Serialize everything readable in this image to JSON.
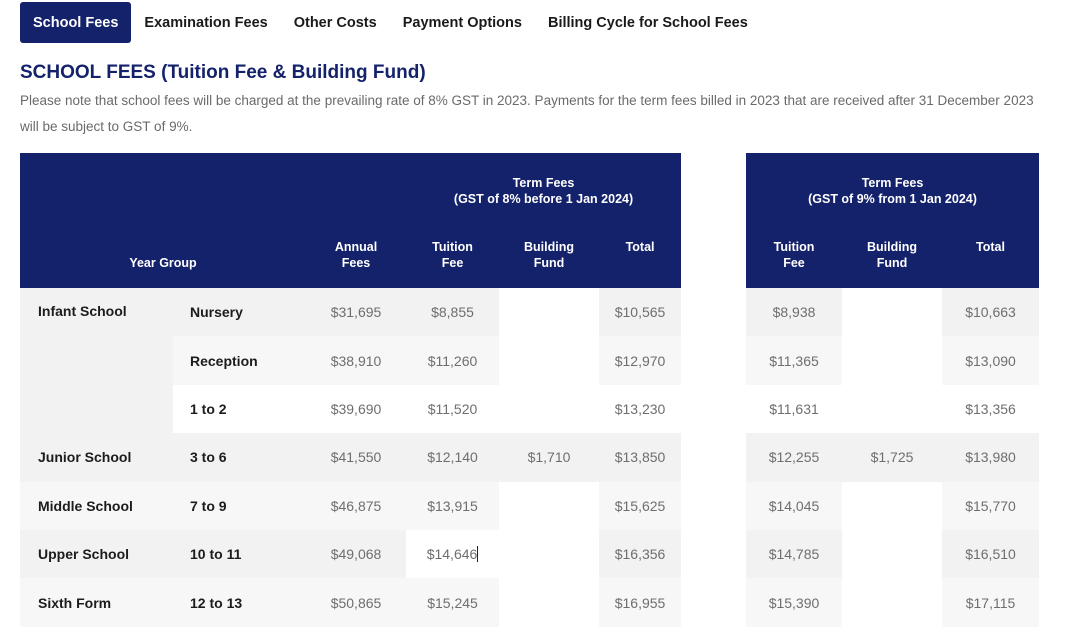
{
  "tabs": [
    {
      "label": "School Fees"
    },
    {
      "label": "Examination Fees"
    },
    {
      "label": "Other Costs"
    },
    {
      "label": "Payment Options"
    },
    {
      "label": "Billing Cycle for School Fees"
    }
  ],
  "heading": "SCHOOL FEES (Tuition Fee & Building Fund)",
  "note": "Please note that school fees will be charged at the prevailing rate of 8% GST in 2023.  Payments for the term fees billed in 2023 that are received after 31 December 2023 will be subject to GST of 9%.",
  "left_table": {
    "term_fees_line1": "Term Fees",
    "term_fees_line2": "(GST of 8% before 1 Jan 2024)",
    "col_year_group": "Year Group",
    "col_annual_1": "Annual",
    "col_annual_2": "Fees",
    "col_tuition_1": "Tuition",
    "col_tuition_2": "Fee",
    "col_building_1": "Building",
    "col_building_2": "Fund",
    "col_total": "Total"
  },
  "right_table": {
    "term_fees_line1": "Term Fees",
    "term_fees_line2": "(GST of 9% from 1 Jan 2024)",
    "col_tuition_1": "Tuition",
    "col_tuition_2": "Fee",
    "col_building_1": "Building",
    "col_building_2": "Fund",
    "col_total": "Total"
  },
  "rows": [
    {
      "school": "Infant School",
      "year": "Nursery",
      "annual": "$31,695",
      "tuition": "$8,855",
      "total": "$10,565",
      "tuition9": "$8,938",
      "total9": "$10,663"
    },
    {
      "school": "",
      "year": "Reception",
      "annual": "$38,910",
      "tuition": "$11,260",
      "total": "$12,970",
      "tuition9": "$11,365",
      "total9": "$13,090"
    },
    {
      "school": "",
      "year": "1 to 2",
      "annual": "$39,690",
      "tuition": "$11,520",
      "total": "$13,230",
      "tuition9": "$11,631",
      "total9": "$13,356"
    },
    {
      "school": "Junior School",
      "year": "3 to 6",
      "annual": "$41,550",
      "tuition": "$12,140",
      "total": "$13,850",
      "tuition9": "$12,255",
      "total9": "$13,980"
    },
    {
      "school": "Middle School",
      "year": "7 to 9",
      "annual": "$46,875",
      "tuition": "$13,915",
      "total": "$15,625",
      "tuition9": "$14,045",
      "total9": "$15,770"
    },
    {
      "school": "Upper School",
      "year": "10 to 11",
      "annual": "$49,068",
      "tuition": "$14,646",
      "total": "$16,356",
      "tuition9": "$14,785",
      "total9": "$16,510"
    },
    {
      "school": "Sixth Form",
      "year": "12 to 13",
      "annual": "$50,865",
      "tuition": "$15,245",
      "total": "$16,955",
      "tuition9": "$15,390",
      "total9": "$17,115"
    }
  ],
  "building_fund_8": "$1,710",
  "building_fund_9": "$1,725"
}
